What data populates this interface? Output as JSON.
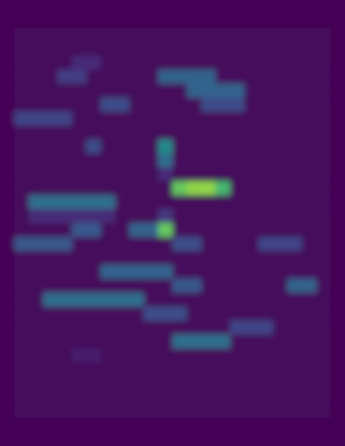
{
  "chart_data": {
    "type": "heatmap",
    "tick_labels": false,
    "color_range": [
      0,
      100
    ],
    "cells": [
      [
        1,
        1,
        1,
        1,
        1,
        1,
        1,
        1,
        1,
        1,
        1,
        1,
        1,
        1,
        1,
        1,
        1,
        1,
        1,
        1,
        1,
        1,
        1,
        1
      ],
      [
        1,
        1,
        1,
        1,
        1,
        1,
        1,
        1,
        1,
        1,
        1,
        1,
        1,
        1,
        1,
        1,
        1,
        1,
        1,
        1,
        1,
        1,
        1,
        1
      ],
      [
        1,
        3,
        3,
        3,
        3,
        3,
        3,
        3,
        3,
        3,
        3,
        3,
        3,
        3,
        3,
        3,
        3,
        3,
        3,
        3,
        3,
        3,
        3,
        1
      ],
      [
        1,
        3,
        3,
        3,
        3,
        3,
        3,
        3,
        3,
        3,
        3,
        3,
        3,
        3,
        3,
        3,
        3,
        3,
        3,
        3,
        3,
        3,
        3,
        1
      ],
      [
        1,
        3,
        3,
        3,
        3,
        15,
        15,
        3,
        3,
        3,
        3,
        3,
        3,
        3,
        3,
        3,
        3,
        3,
        3,
        3,
        3,
        3,
        3,
        1
      ],
      [
        1,
        3,
        3,
        3,
        22,
        22,
        3,
        3,
        3,
        3,
        3,
        40,
        40,
        40,
        40,
        3,
        3,
        3,
        3,
        3,
        3,
        3,
        3,
        1
      ],
      [
        1,
        3,
        3,
        3,
        3,
        3,
        3,
        3,
        3,
        3,
        3,
        3,
        3,
        40,
        40,
        40,
        40,
        3,
        3,
        3,
        3,
        3,
        3,
        1
      ],
      [
        1,
        3,
        3,
        3,
        3,
        3,
        3,
        30,
        30,
        3,
        3,
        3,
        3,
        3,
        30,
        30,
        30,
        3,
        3,
        3,
        3,
        3,
        3,
        1
      ],
      [
        1,
        25,
        25,
        25,
        25,
        3,
        3,
        3,
        3,
        3,
        3,
        3,
        3,
        3,
        3,
        3,
        3,
        3,
        3,
        3,
        3,
        3,
        3,
        1
      ],
      [
        1,
        3,
        3,
        3,
        3,
        3,
        3,
        3,
        3,
        3,
        3,
        3,
        3,
        3,
        3,
        3,
        3,
        3,
        3,
        3,
        3,
        3,
        3,
        1
      ],
      [
        1,
        3,
        3,
        3,
        3,
        3,
        30,
        3,
        3,
        3,
        3,
        60,
        3,
        3,
        3,
        3,
        3,
        3,
        3,
        3,
        3,
        3,
        3,
        1
      ],
      [
        1,
        3,
        3,
        3,
        3,
        3,
        3,
        3,
        3,
        3,
        3,
        45,
        3,
        3,
        3,
        3,
        3,
        3,
        3,
        3,
        3,
        3,
        3,
        1
      ],
      [
        1,
        3,
        3,
        3,
        3,
        3,
        3,
        3,
        3,
        3,
        3,
        15,
        3,
        3,
        3,
        3,
        3,
        3,
        3,
        3,
        3,
        3,
        3,
        1
      ],
      [
        1,
        3,
        3,
        3,
        3,
        3,
        3,
        3,
        3,
        3,
        3,
        3,
        85,
        90,
        90,
        80,
        3,
        3,
        3,
        3,
        3,
        3,
        3,
        1
      ],
      [
        1,
        3,
        45,
        45,
        45,
        45,
        45,
        45,
        3,
        3,
        3,
        3,
        3,
        3,
        3,
        3,
        3,
        3,
        3,
        3,
        3,
        3,
        3,
        1
      ],
      [
        1,
        3,
        15,
        15,
        15,
        15,
        15,
        15,
        3,
        3,
        3,
        20,
        3,
        3,
        3,
        3,
        3,
        3,
        3,
        3,
        3,
        3,
        3,
        1
      ],
      [
        1,
        3,
        3,
        3,
        3,
        35,
        35,
        3,
        3,
        40,
        40,
        85,
        3,
        3,
        3,
        3,
        3,
        3,
        3,
        3,
        3,
        3,
        3,
        1
      ],
      [
        1,
        35,
        35,
        35,
        35,
        3,
        3,
        3,
        3,
        3,
        3,
        3,
        30,
        30,
        3,
        3,
        3,
        3,
        25,
        25,
        25,
        3,
        3,
        1
      ],
      [
        1,
        3,
        3,
        3,
        3,
        3,
        3,
        3,
        3,
        3,
        3,
        3,
        3,
        3,
        3,
        3,
        3,
        3,
        3,
        3,
        3,
        3,
        3,
        1
      ],
      [
        1,
        3,
        3,
        3,
        3,
        3,
        3,
        40,
        40,
        40,
        40,
        40,
        3,
        3,
        3,
        3,
        3,
        3,
        3,
        3,
        3,
        3,
        3,
        1
      ],
      [
        1,
        3,
        3,
        3,
        3,
        3,
        3,
        3,
        3,
        3,
        3,
        3,
        35,
        35,
        3,
        3,
        3,
        3,
        3,
        3,
        40,
        40,
        3,
        1
      ],
      [
        1,
        3,
        3,
        45,
        45,
        45,
        45,
        45,
        45,
        45,
        3,
        3,
        3,
        3,
        3,
        3,
        3,
        3,
        3,
        3,
        3,
        3,
        3,
        1
      ],
      [
        1,
        3,
        3,
        3,
        3,
        3,
        3,
        3,
        3,
        3,
        30,
        30,
        30,
        3,
        3,
        3,
        3,
        3,
        3,
        3,
        3,
        3,
        3,
        1
      ],
      [
        1,
        3,
        3,
        3,
        3,
        3,
        3,
        3,
        3,
        3,
        3,
        3,
        3,
        3,
        3,
        3,
        25,
        25,
        25,
        3,
        3,
        3,
        3,
        1
      ],
      [
        1,
        3,
        3,
        3,
        3,
        3,
        3,
        3,
        3,
        3,
        3,
        3,
        45,
        45,
        45,
        45,
        3,
        3,
        3,
        3,
        3,
        3,
        3,
        1
      ],
      [
        1,
        3,
        3,
        3,
        3,
        10,
        10,
        3,
        3,
        3,
        3,
        3,
        3,
        3,
        3,
        3,
        3,
        3,
        3,
        3,
        3,
        3,
        3,
        1
      ],
      [
        1,
        3,
        3,
        3,
        3,
        3,
        3,
        3,
        3,
        3,
        3,
        3,
        3,
        3,
        3,
        3,
        3,
        3,
        3,
        3,
        3,
        3,
        3,
        1
      ],
      [
        1,
        3,
        3,
        3,
        3,
        3,
        3,
        3,
        3,
        3,
        3,
        3,
        3,
        3,
        3,
        3,
        3,
        3,
        3,
        3,
        3,
        3,
        3,
        1
      ],
      [
        1,
        3,
        3,
        3,
        3,
        3,
        3,
        3,
        3,
        3,
        3,
        3,
        3,
        3,
        3,
        3,
        3,
        3,
        3,
        3,
        3,
        3,
        3,
        1
      ],
      [
        1,
        3,
        3,
        3,
        3,
        3,
        3,
        3,
        3,
        3,
        3,
        3,
        3,
        3,
        3,
        3,
        3,
        3,
        3,
        3,
        3,
        3,
        3,
        1
      ],
      [
        1,
        1,
        1,
        1,
        1,
        1,
        1,
        1,
        1,
        1,
        1,
        1,
        1,
        1,
        1,
        1,
        1,
        1,
        1,
        1,
        1,
        1,
        1,
        1
      ],
      [
        1,
        1,
        1,
        1,
        1,
        1,
        1,
        1,
        1,
        1,
        1,
        1,
        1,
        1,
        1,
        1,
        1,
        1,
        1,
        1,
        1,
        1,
        1,
        1
      ]
    ]
  }
}
